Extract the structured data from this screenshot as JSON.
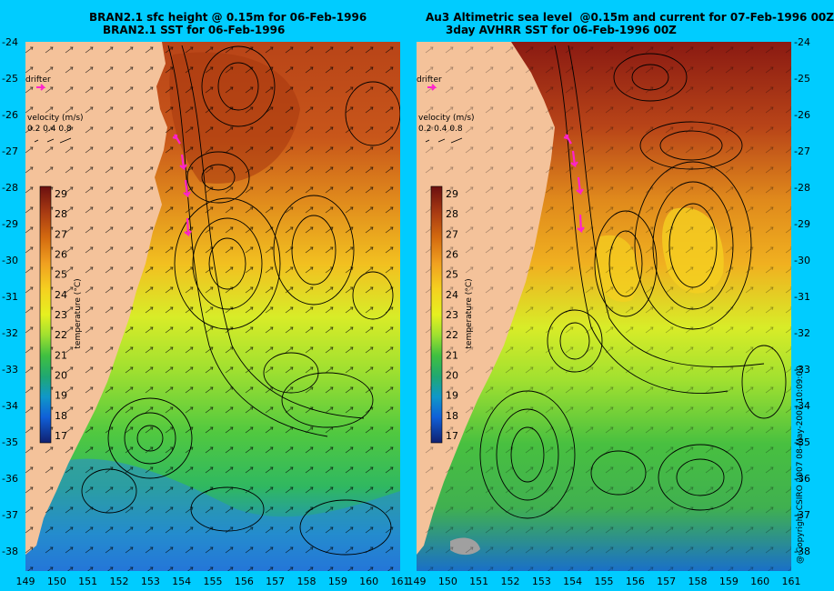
{
  "left_panel": {
    "title_line1": "BRAN2.1 sfc height @ 0.15m for 06-Feb-1996",
    "title_line2": "BRAN2.1 SST for 06-Feb-1996",
    "drifter_label": "drifter",
    "velocity_label": "velocity (m/s)",
    "velocity_scale": "0.2 0.4 0.8"
  },
  "right_panel": {
    "title_line1": "Au3 Altimetric sea level  @0.15m and current for 07-Feb-1996 00Z",
    "title_line2": "3day AVHRR SST for 06-Feb-1996 00Z",
    "drifter_label": "drifter",
    "velocity_label": "velocity (m/s)",
    "velocity_scale": "0.2 0.4 0.8"
  },
  "colorbar": {
    "label": "temperature (°C)",
    "ticks": [
      "29",
      "28",
      "27",
      "26",
      "25",
      "24",
      "23",
      "22",
      "21",
      "20",
      "19",
      "18",
      "17"
    ],
    "colors": [
      "#6b0f0f",
      "#a83a12",
      "#d46a10",
      "#f0a020",
      "#f5d020",
      "#e6f020",
      "#a0e030",
      "#40c040",
      "#20a870",
      "#1098c8",
      "#1060d8",
      "#1838b0",
      "#102070"
    ]
  },
  "lat_ticks": [
    "-24",
    "-25",
    "-26",
    "-27",
    "-28",
    "-29",
    "-30",
    "-31",
    "-32",
    "-33",
    "-34",
    "-35",
    "-36",
    "-37",
    "-38"
  ],
  "lon_ticks_left": [
    "149",
    "150",
    "151",
    "152",
    "153",
    "154",
    "155",
    "156",
    "157",
    "158",
    "159",
    "160",
    "161"
  ],
  "lon_ticks_right": [
    "149",
    "150",
    "151",
    "152",
    "153",
    "154",
    "155",
    "156",
    "157",
    "158",
    "159",
    "160",
    "161"
  ],
  "copyright": "@ Copyright CSIRO 2007  08-May-2007 10:09:00",
  "colors": {
    "background": "#00ccff",
    "land": "#f4c29a",
    "drifter": "#ff22cc"
  }
}
